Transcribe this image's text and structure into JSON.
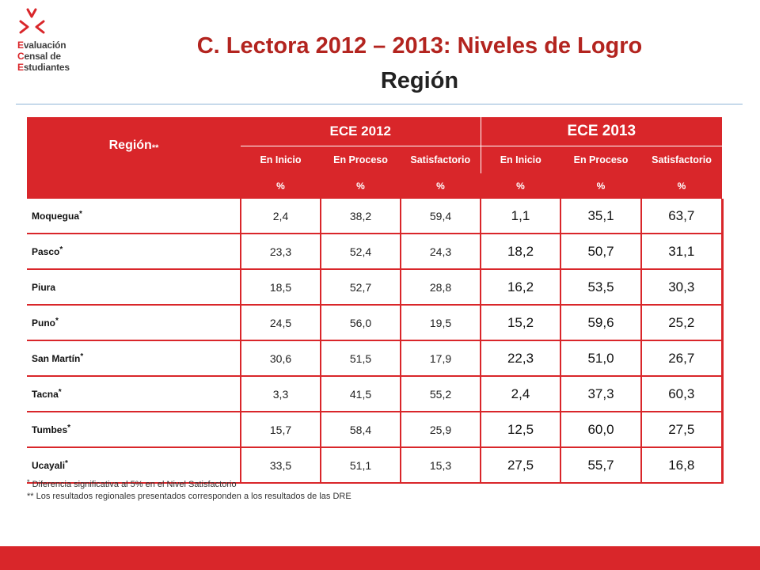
{
  "logo": {
    "line1": {
      "cap": "E",
      "rest": "valuación"
    },
    "line2": {
      "cap": "C",
      "rest": "ensal de"
    },
    "line3": {
      "cap": "E",
      "rest": "studiantes"
    }
  },
  "title": "C. Lectora 2012 – 2013: Niveles de Logro",
  "subtitle": "Región",
  "table": {
    "region_header": "Región",
    "region_header_mark": "**",
    "groups": [
      "ECE 2012",
      "ECE 2013"
    ],
    "levels": [
      "En Inicio",
      "En Proceso",
      "Satisfactorio",
      "En Inicio",
      "En Proceso",
      "Satisfactorio"
    ],
    "units": [
      "%",
      "%",
      "%",
      "%",
      "%",
      "%"
    ],
    "rows": [
      {
        "region": "Moquegua",
        "mark": "*",
        "values": [
          "2,4",
          "38,2",
          "59,4",
          "1,1",
          "35,1",
          "63,7"
        ]
      },
      {
        "region": "Pasco",
        "mark": "*",
        "values": [
          "23,3",
          "52,4",
          "24,3",
          "18,2",
          "50,7",
          "31,1"
        ]
      },
      {
        "region": "Piura",
        "mark": "",
        "values": [
          "18,5",
          "52,7",
          "28,8",
          "16,2",
          "53,5",
          "30,3"
        ]
      },
      {
        "region": "Puno",
        "mark": "*",
        "values": [
          "24,5",
          "56,0",
          "19,5",
          "15,2",
          "59,6",
          "25,2"
        ]
      },
      {
        "region": "San Martín",
        "mark": "*",
        "values": [
          "30,6",
          "51,5",
          "17,9",
          "22,3",
          "51,0",
          "26,7"
        ]
      },
      {
        "region": "Tacna",
        "mark": "*",
        "values": [
          "3,3",
          "41,5",
          "55,2",
          "2,4",
          "37,3",
          "60,3"
        ]
      },
      {
        "region": "Tumbes",
        "mark": "*",
        "values": [
          "15,7",
          "58,4",
          "25,9",
          "12,5",
          "60,0",
          "27,5"
        ]
      },
      {
        "region": "Ucayali",
        "mark": "*",
        "values": [
          "33,5",
          "51,1",
          "15,3",
          "27,5",
          "55,7",
          "16,8"
        ]
      }
    ]
  },
  "notes": {
    "note1_mark": "*",
    "note1": " Diferencia significativa al 5% en el Nivel Satisfactorio",
    "note2": "** Los resultados regionales presentados corresponden a los resultados de las DRE"
  },
  "colors": {
    "accent": "#d9262a",
    "title": "#b3241f",
    "rule": "#8fb4d6"
  }
}
